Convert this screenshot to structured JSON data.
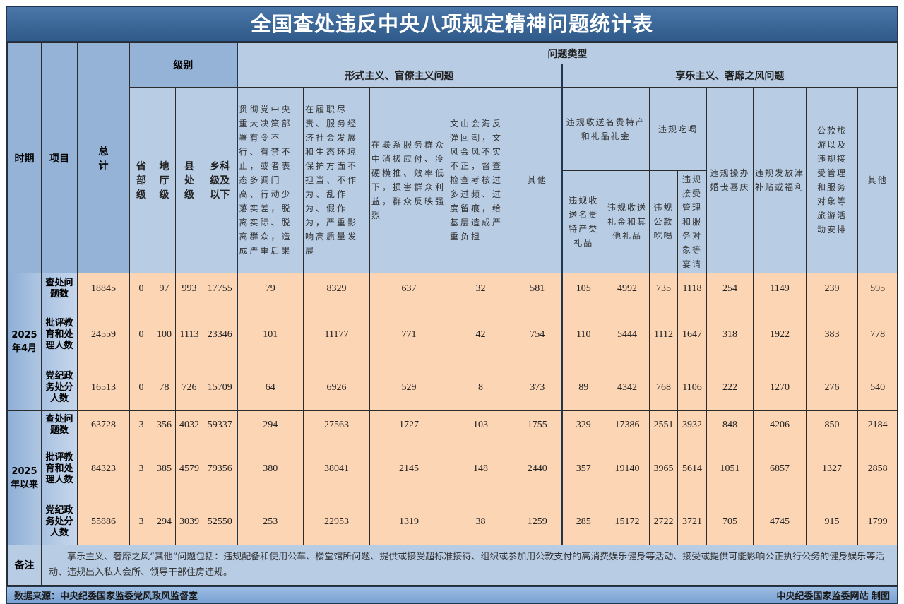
{
  "title": "全国查处违反中央八项规定精神问题统计表",
  "header": {
    "period": "时期",
    "item": "项目",
    "total": "总计",
    "level": "级别",
    "levels": [
      "省部级",
      "地厅级",
      "县处级",
      "乡科级及以下"
    ],
    "problem_type": "问题类型",
    "formalism": "形式主义、官僚主义问题",
    "hedonism": "享乐主义、奢靡之风问题",
    "formalism_cols": [
      "贯彻党中央重大决策部署有令不行、有禁不止，或者表态多调门高、行动少落实差，脱离实际、脱离群众，造成严重后果",
      "在履职尽责、服务经济社会发展和生态环境保护方面不担当、不作为、乱作为、假作为，严重影响高质量发展",
      "在联系服务群众中消极应付、冷硬横推、效率低下，损害群众利益，群众反映强烈",
      "文山会海反弹回潮，文风会风不实不正，督查检查考核过多过频、过度留痕，给基层造成严重负担",
      "其他"
    ],
    "gifts_group": "违规收送名贵特产和礼品礼金",
    "gifts_cols": [
      "违规收送名贵特产类礼品",
      "违规收送礼金和其他礼品"
    ],
    "dining_group": "违规吃喝",
    "dining_cols": [
      "违规公款吃喝",
      "违规接受管理和服务对象等宴请"
    ],
    "hedonism_cols": [
      "违规操办婚丧喜庆",
      "违规发放津补贴或福利",
      "公款旅游以及违规接受管理和服务对象等旅游活动安排",
      "其他"
    ]
  },
  "rows": [
    {
      "period": "2025年4月",
      "item": "查处问题数",
      "values": [
        18845,
        0,
        97,
        993,
        17755,
        79,
        8329,
        637,
        32,
        581,
        105,
        4992,
        735,
        1118,
        254,
        1149,
        239,
        595
      ]
    },
    {
      "period": "2025年4月",
      "item": "批评教育和处理人数",
      "values": [
        24559,
        0,
        100,
        1113,
        23346,
        101,
        11177,
        771,
        42,
        754,
        110,
        5444,
        1112,
        1647,
        318,
        1922,
        383,
        778
      ]
    },
    {
      "period": "2025年4月",
      "item": "党纪政务处分人数",
      "values": [
        16513,
        0,
        78,
        726,
        15709,
        64,
        6926,
        529,
        8,
        373,
        89,
        4342,
        768,
        1106,
        222,
        1270,
        276,
        540
      ]
    },
    {
      "period": "2025年以来",
      "item": "查处问题数",
      "values": [
        63728,
        3,
        356,
        4032,
        59337,
        294,
        27563,
        1727,
        103,
        1755,
        329,
        17386,
        2551,
        3932,
        848,
        4206,
        850,
        2184
      ]
    },
    {
      "period": "2025年以来",
      "item": "批评教育和处理人数",
      "values": [
        84323,
        3,
        385,
        4579,
        79356,
        380,
        38041,
        2145,
        148,
        2440,
        357,
        19140,
        3965,
        5614,
        1051,
        6857,
        1327,
        2858
      ]
    },
    {
      "period": "2025年以来",
      "item": "党纪政务处分人数",
      "values": [
        55886,
        3,
        294,
        3039,
        52550,
        253,
        22953,
        1319,
        38,
        1259,
        285,
        15172,
        2722,
        3721,
        705,
        4745,
        915,
        1799
      ]
    }
  ],
  "note": {
    "label": "备注",
    "text": "享乐主义、奢靡之风“其他”问题包括：违规配备和使用公车、楼堂馆所问题、提供或接受超标准接待、组织或参加用公款支付的高消费娱乐健身等活动、接受或提供可能影响公正执行公务的健身娱乐等活动、违规出入私人会所、领导干部住房违规。"
  },
  "footer": {
    "source": "数据来源：中央纪委国家监委党风政风监督室",
    "credit": "中央纪委国家监委网站 制图"
  },
  "colors": {
    "title_bg": "#3a6594",
    "header_bg": "#b8cce4",
    "data_bg": "#fcd5b5",
    "footer_bg": "#8db3e2"
  }
}
